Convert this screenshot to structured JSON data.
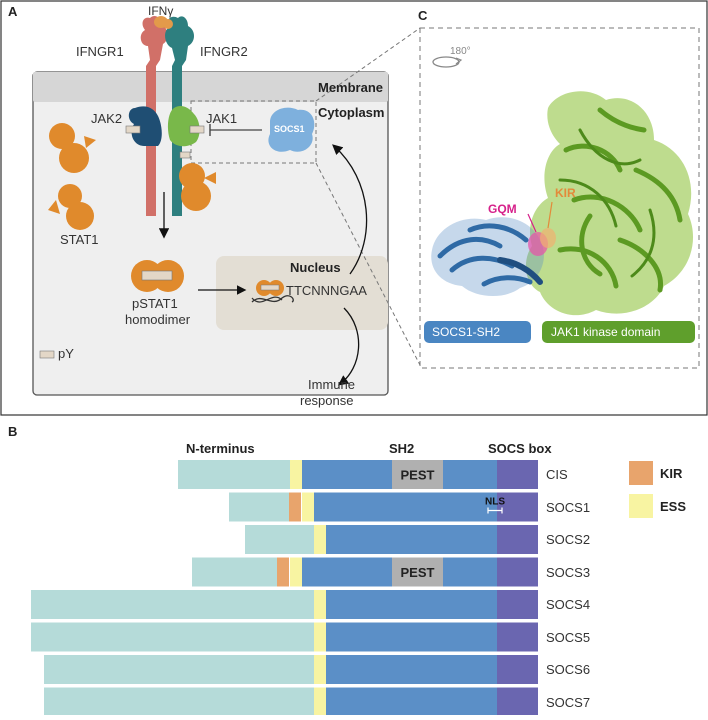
{
  "panel_a": {
    "letter": "A",
    "ifngr1": "IFNGR1",
    "ifngr2": "IFNGR2",
    "ifn": "IFNγ",
    "membrane": "Membrane",
    "cytoplasm": "Cytoplasm",
    "jak2": "JAK2",
    "jak1": "JAK1",
    "socs1": "SOCS1",
    "stat1": "STAT1",
    "pstat1_line1": "pSTAT1",
    "pstat1_line2": "homodimer",
    "nucleus": "Nucleus",
    "dna_motif": "TTCNNNGAA",
    "pY": "pY",
    "immune_line1": "Immune",
    "immune_line2": "response"
  },
  "panel_c": {
    "letter": "C",
    "rotation": "180°",
    "kir": "KIR",
    "gqm": "GQM",
    "socs1_sh2": "SOCS1-SH2",
    "jak1_kinase": "JAK1 kinase domain"
  },
  "panel_b": {
    "letter": "B",
    "headers": {
      "n_terminus": "N-terminus",
      "sh2": "SH2",
      "socs_box": "SOCS box"
    },
    "legend": [
      {
        "label": "KIR",
        "color": "#e8a46c"
      },
      {
        "label": "ESS",
        "color": "#f8f4a2"
      }
    ],
    "proteins": [
      {
        "name": "CIS",
        "nterm_start": 178,
        "kir": null,
        "ess_end": 302,
        "sh2_end": 497,
        "box_end": 538,
        "pest": [
          392,
          443
        ],
        "nls": false
      },
      {
        "name": "SOCS1",
        "nterm_start": 229,
        "kir": [
          289,
          301
        ],
        "ess_end": 314,
        "sh2_end": 497,
        "box_end": 538,
        "pest": null,
        "nls": true
      },
      {
        "name": "SOCS2",
        "nterm_start": 245,
        "kir": null,
        "ess_end": 326,
        "sh2_end": 497,
        "box_end": 538,
        "pest": null,
        "nls": false
      },
      {
        "name": "SOCS3",
        "nterm_start": 192,
        "kir": [
          277,
          289
        ],
        "ess_end": 302,
        "sh2_end": 497,
        "box_end": 538,
        "pest": [
          392,
          443
        ],
        "nls": false
      },
      {
        "name": "SOCS4",
        "nterm_start": 31,
        "kir": null,
        "ess_end": 326,
        "sh2_end": 497,
        "box_end": 538,
        "pest": null,
        "nls": false
      },
      {
        "name": "SOCS5",
        "nterm_start": 31,
        "kir": null,
        "ess_end": 326,
        "sh2_end": 497,
        "box_end": 538,
        "pest": null,
        "nls": false
      },
      {
        "name": "SOCS6",
        "nterm_start": 44,
        "kir": null,
        "ess_end": 326,
        "sh2_end": 497,
        "box_end": 538,
        "pest": null,
        "nls": false
      },
      {
        "name": "SOCS7",
        "nterm_start": 44,
        "kir": null,
        "ess_end": 326,
        "sh2_end": 497,
        "box_end": 538,
        "pest": null,
        "nls": false
      }
    ],
    "pest_label": "PEST",
    "nls_label": "NLS",
    "colors": {
      "nterm": "#b5dbd9",
      "ess": "#f8f4a2",
      "sh2": "#5b8fc7",
      "box": "#6a66b0",
      "pest": "#b0b0b0"
    }
  }
}
